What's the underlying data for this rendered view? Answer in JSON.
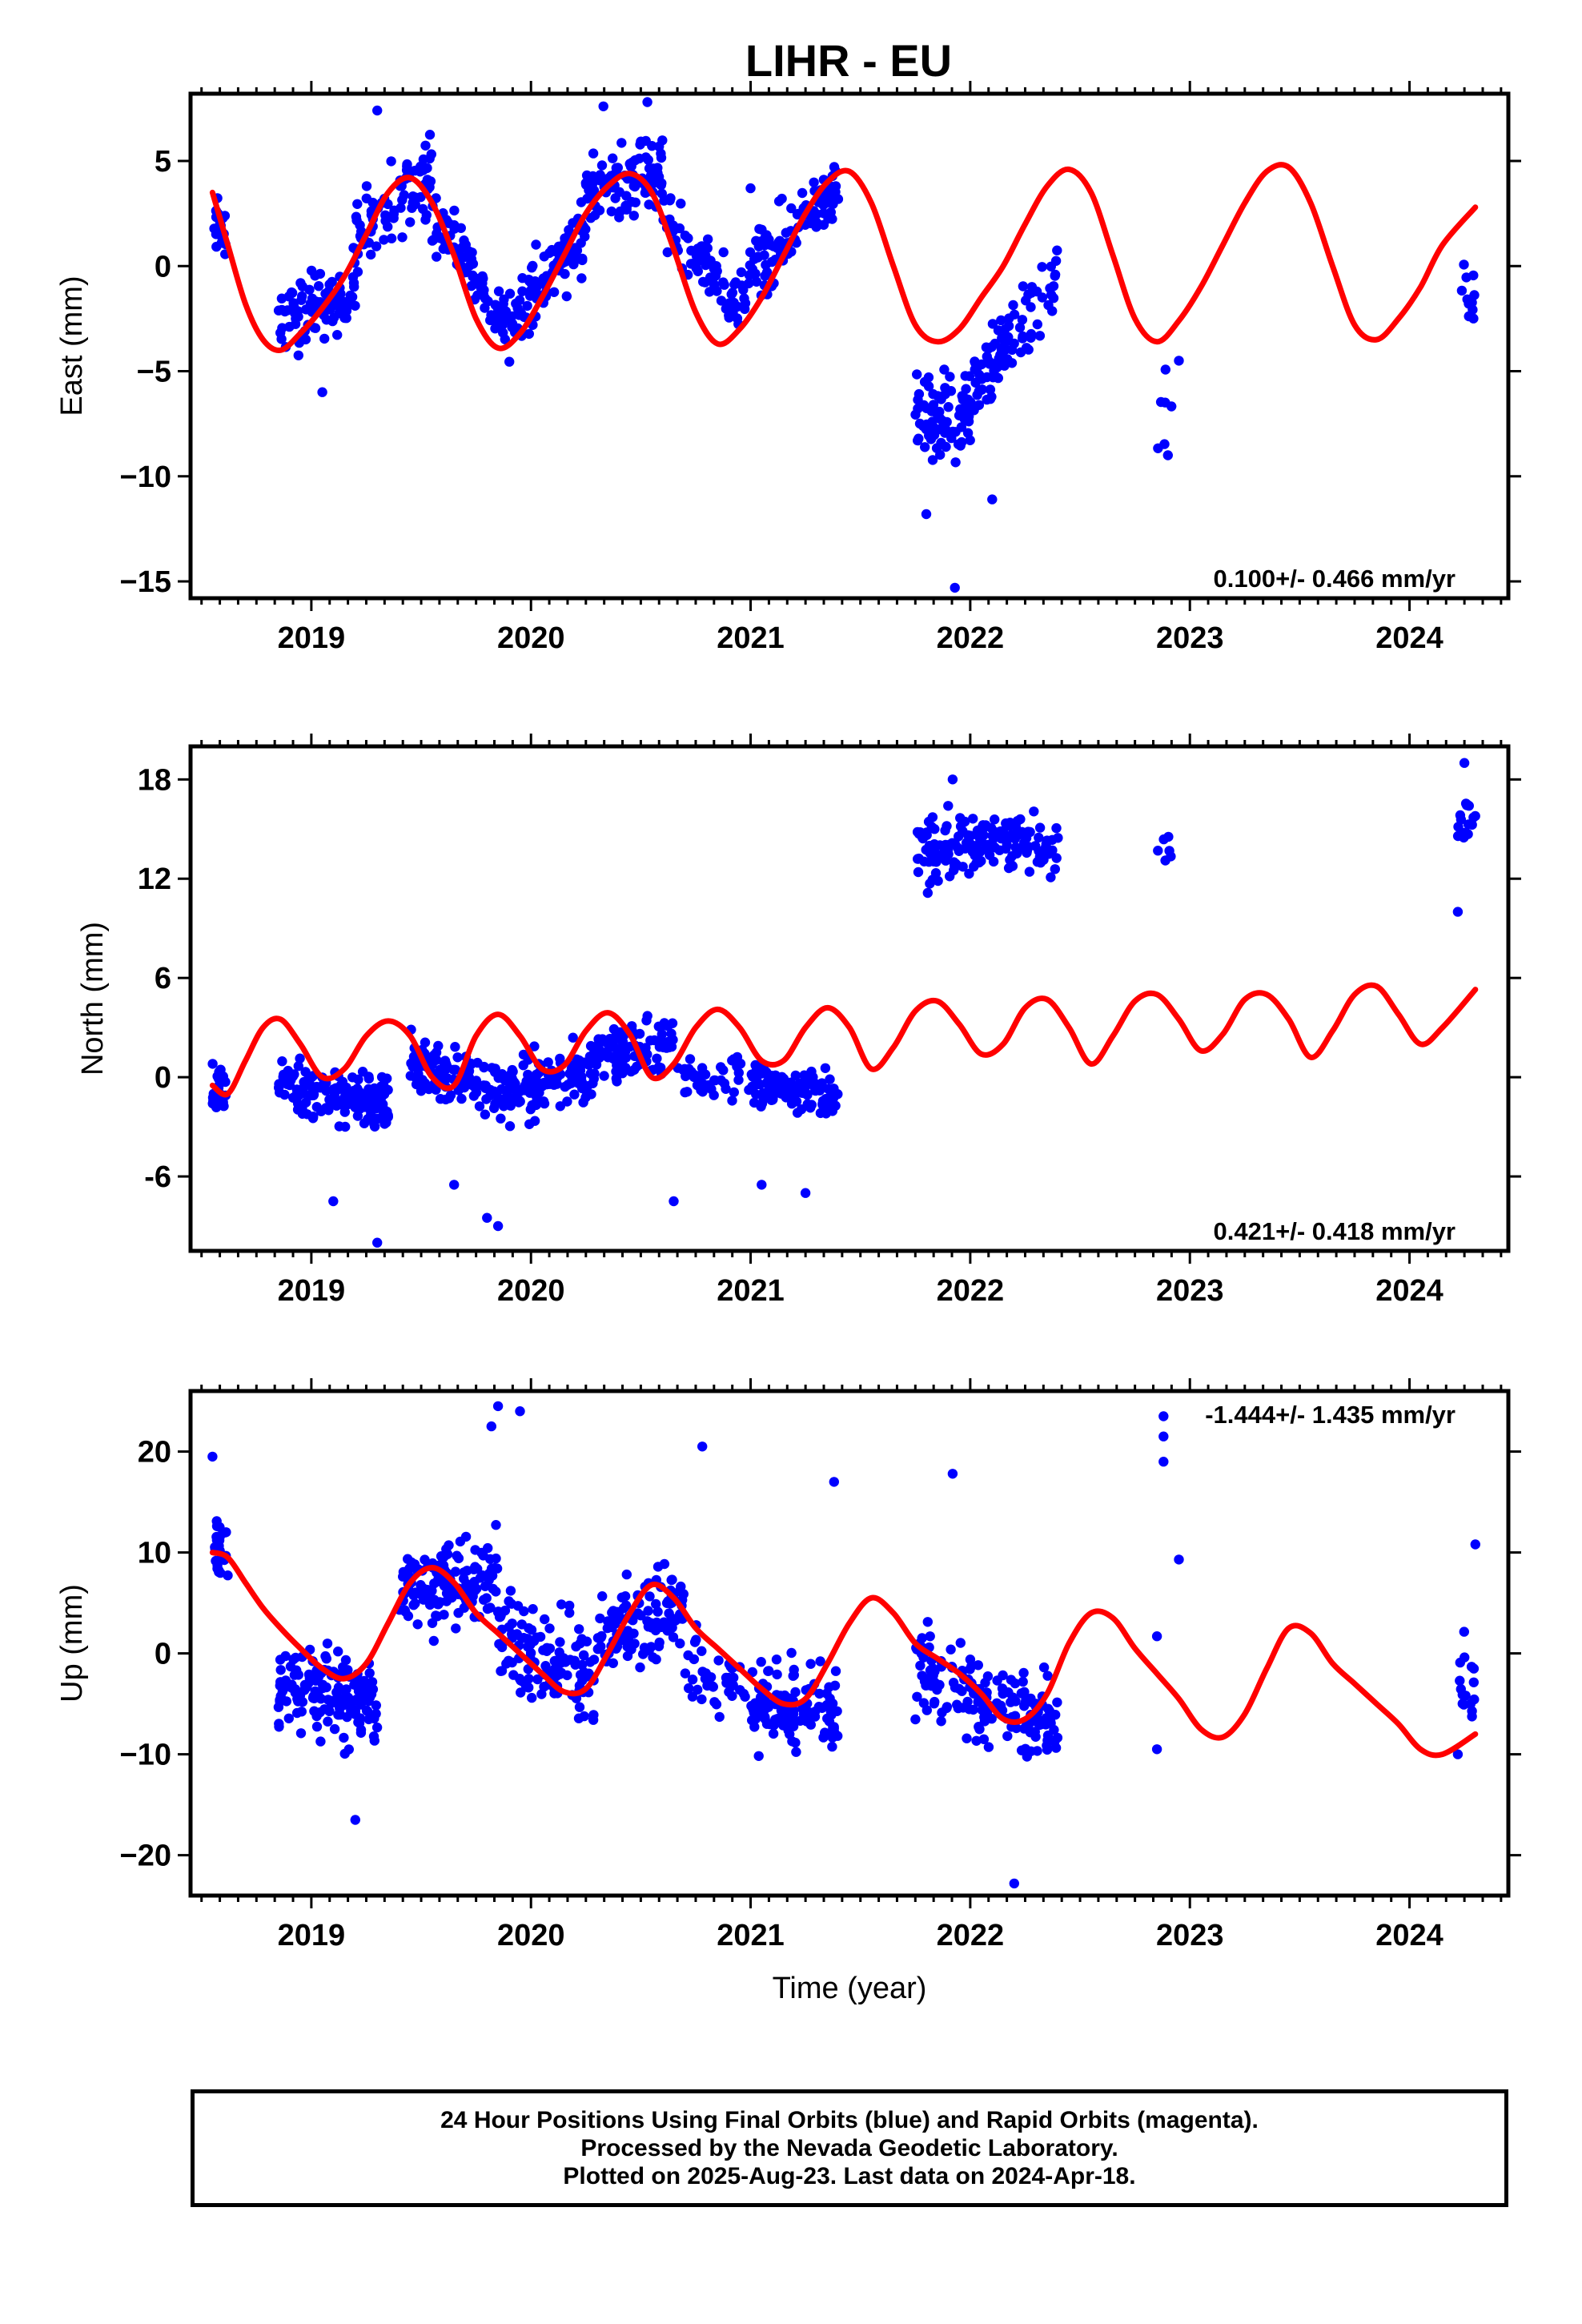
{
  "title": "LIHR - EU",
  "footer": {
    "line1": "24 Hour Positions Using Final Orbits (blue) and Rapid Orbits (magenta).",
    "line2": "Processed by the Nevada Geodetic Laboratory.",
    "line3": "Plotted on 2025-Aug-23. Last data on 2024-Apr-18."
  },
  "colors": {
    "points": "#0000ff",
    "model": "#ff0000",
    "axis": "#000000"
  },
  "chart_data": [
    {
      "type": "scatter",
      "title": "LIHR - EU",
      "ylabel": "East (mm)",
      "xlabel": "",
      "xlim": [
        2018.45,
        2024.45
      ],
      "ylim": [
        -15.8,
        8.2
      ],
      "yticks": [
        5,
        0,
        -5,
        -10,
        -15
      ],
      "ytick_labels": [
        "5",
        "0",
        "−5",
        "−10",
        "−15"
      ],
      "xticks": [
        2019,
        2020,
        2021,
        2022,
        2023,
        2024
      ],
      "rate_label": "0.100+/- 0.466 mm/yr",
      "rate_position": "bottom-right",
      "model": {
        "name": "fit",
        "x": [
          2018.55,
          2018.62,
          2018.7,
          2018.78,
          2018.86,
          2018.95,
          2019.05,
          2019.15,
          2019.25,
          2019.35,
          2019.45,
          2019.55,
          2019.65,
          2019.75,
          2019.85,
          2019.95,
          2020.05,
          2020.15,
          2020.25,
          2020.35,
          2020.45,
          2020.55,
          2020.65,
          2020.75,
          2020.85,
          2020.95,
          2021.05,
          2021.15,
          2021.25,
          2021.35,
          2021.45,
          2021.55,
          2021.65,
          2021.75,
          2021.85,
          2021.95,
          2022.05,
          2022.15,
          2022.25,
          2022.35,
          2022.45,
          2022.55,
          2022.65,
          2022.75,
          2022.85,
          2022.95,
          2023.05,
          2023.15,
          2023.25,
          2023.35,
          2023.45,
          2023.55,
          2023.65,
          2023.75,
          2023.85,
          2023.95,
          2024.05,
          2024.15,
          2024.3
        ],
        "y": [
          3.5,
          1.0,
          -1.8,
          -3.5,
          -4.0,
          -3.2,
          -2.0,
          -0.5,
          1.5,
          3.5,
          4.2,
          3.0,
          0.5,
          -2.5,
          -3.9,
          -3.2,
          -1.5,
          0.5,
          2.5,
          3.8,
          4.4,
          3.5,
          0.8,
          -2.2,
          -3.7,
          -3.0,
          -1.5,
          0.5,
          2.5,
          4.0,
          4.5,
          3.0,
          0.0,
          -2.8,
          -3.6,
          -3.0,
          -1.5,
          0.0,
          2.0,
          3.8,
          4.6,
          3.5,
          0.5,
          -2.5,
          -3.6,
          -2.6,
          -1.0,
          1.0,
          3.0,
          4.5,
          4.7,
          3.0,
          0.0,
          -2.8,
          -3.5,
          -2.5,
          -1.0,
          1.0,
          2.8
        ]
      },
      "points_segments": [
        {
          "x": [
            2018.55,
            2018.62
          ],
          "center": [
            2.0,
            1.5
          ],
          "spread": 2.2,
          "count": 26
        },
        {
          "x": [
            2018.85,
            2019.2
          ],
          "center": [
            -2.8,
            -1.0
          ],
          "spread": 3.0,
          "count": 90
        },
        {
          "x": [
            2019.2,
            2019.55
          ],
          "center": [
            1.5,
            4.5
          ],
          "spread": 3.2,
          "count": 80
        },
        {
          "x": [
            2019.55,
            2019.9
          ],
          "center": [
            2.5,
            -2.8
          ],
          "spread": 2.8,
          "count": 80
        },
        {
          "x": [
            2019.9,
            2020.25
          ],
          "center": [
            -2.8,
            1.8
          ],
          "spread": 3.0,
          "count": 90
        },
        {
          "x": [
            2020.25,
            2020.6
          ],
          "center": [
            3.5,
            4.6
          ],
          "spread": 3.0,
          "count": 100
        },
        {
          "x": [
            2020.6,
            2020.95
          ],
          "center": [
            2.0,
            -2.0
          ],
          "spread": 2.8,
          "count": 70
        },
        {
          "x": [
            2020.95,
            2021.4
          ],
          "center": [
            -1.0,
            4.0
          ],
          "spread": 3.0,
          "count": 110
        },
        {
          "x": [
            2021.75,
            2022.0
          ],
          "center": [
            -7.5,
            -7.0
          ],
          "spread": 3.4,
          "count": 85
        },
        {
          "x": [
            2022.0,
            2022.4
          ],
          "center": [
            -6.0,
            -0.5
          ],
          "spread": 3.0,
          "count": 90
        },
        {
          "x": [
            2022.85,
            2022.92
          ],
          "center": [
            -7.0,
            -6.0
          ],
          "spread": 3.0,
          "count": 6
        },
        {
          "x": [
            2024.22,
            2024.3
          ],
          "center": [
            -1.5,
            -1.5
          ],
          "spread": 2.5,
          "count": 14
        }
      ],
      "outliers": [
        [
          2021.93,
          -15.3
        ],
        [
          2021.8,
          -11.8
        ],
        [
          2022.1,
          -11.1
        ],
        [
          2019.05,
          -6.0
        ],
        [
          2019.3,
          7.4
        ],
        [
          2020.33,
          7.6
        ],
        [
          2020.53,
          7.8
        ],
        [
          2021.0,
          3.7
        ],
        [
          2022.95,
          -4.5
        ],
        [
          2022.9,
          -9.0
        ]
      ]
    },
    {
      "type": "scatter",
      "ylabel": "North (mm)",
      "xlabel": "",
      "xlim": [
        2018.45,
        2024.45
      ],
      "ylim": [
        -10.5,
        20
      ],
      "yticks": [
        18,
        12,
        6,
        0,
        -6
      ],
      "ytick_labels": [
        "18",
        "12",
        "6",
        "0",
        "-6"
      ],
      "xticks": [
        2019,
        2020,
        2021,
        2022,
        2023,
        2024
      ],
      "rate_label": "0.421+/- 0.418 mm/yr",
      "rate_position": "bottom-right",
      "model": {
        "name": "fit",
        "x": [
          2018.55,
          2018.62,
          2018.7,
          2018.78,
          2018.86,
          2018.95,
          2019.05,
          2019.15,
          2019.25,
          2019.35,
          2019.45,
          2019.55,
          2019.65,
          2019.75,
          2019.85,
          2019.95,
          2020.05,
          2020.15,
          2020.25,
          2020.35,
          2020.45,
          2020.55,
          2020.65,
          2020.75,
          2020.85,
          2020.95,
          2021.05,
          2021.15,
          2021.25,
          2021.35,
          2021.45,
          2021.55,
          2021.65,
          2021.75,
          2021.85,
          2021.95,
          2022.05,
          2022.15,
          2022.25,
          2022.35,
          2022.45,
          2022.55,
          2022.65,
          2022.75,
          2022.85,
          2022.95,
          2023.05,
          2023.15,
          2023.25,
          2023.35,
          2023.45,
          2023.55,
          2023.65,
          2023.75,
          2023.85,
          2023.95,
          2024.05,
          2024.15,
          2024.3
        ],
        "y": [
          -0.5,
          -1.0,
          1.0,
          3.0,
          3.5,
          2.0,
          0.0,
          0.5,
          2.5,
          3.4,
          2.5,
          0.0,
          -0.5,
          2.5,
          3.8,
          2.5,
          0.5,
          0.7,
          2.8,
          3.9,
          2.6,
          0.0,
          0.8,
          3.0,
          4.1,
          3.0,
          1.0,
          1.0,
          3.0,
          4.2,
          3.0,
          0.5,
          1.8,
          4.0,
          4.6,
          3.2,
          1.4,
          2.0,
          4.2,
          4.7,
          3.0,
          0.8,
          2.5,
          4.6,
          5.0,
          3.5,
          1.6,
          2.6,
          4.7,
          5.0,
          3.5,
          1.2,
          2.8,
          5.0,
          5.5,
          3.8,
          2.0,
          3.0,
          5.3
        ]
      },
      "points_segments": [
        {
          "x": [
            2018.55,
            2018.62
          ],
          "center": [
            -0.5,
            -0.8
          ],
          "spread": 2.6,
          "count": 26
        },
        {
          "x": [
            2018.85,
            2019.35
          ],
          "center": [
            -0.5,
            -1.5
          ],
          "spread": 3.4,
          "count": 150
        },
        {
          "x": [
            2019.45,
            2019.9
          ],
          "center": [
            1.0,
            -1.0
          ],
          "spread": 3.0,
          "count": 120
        },
        {
          "x": [
            2019.9,
            2020.3
          ],
          "center": [
            -1.0,
            0.5
          ],
          "spread": 3.0,
          "count": 120
        },
        {
          "x": [
            2020.3,
            2020.65
          ],
          "center": [
            1.5,
            2.0
          ],
          "spread": 2.8,
          "count": 100
        },
        {
          "x": [
            2020.65,
            2021.0
          ],
          "center": [
            0.0,
            0.2
          ],
          "spread": 2.4,
          "count": 40
        },
        {
          "x": [
            2021.0,
            2021.4
          ],
          "center": [
            -0.5,
            -1.2
          ],
          "spread": 2.4,
          "count": 120
        },
        {
          "x": [
            2021.75,
            2022.05
          ],
          "center": [
            13.5,
            14.0
          ],
          "spread": 3.4,
          "count": 90
        },
        {
          "x": [
            2022.05,
            2022.4
          ],
          "center": [
            14.5,
            13.8
          ],
          "spread": 2.6,
          "count": 90
        },
        {
          "x": [
            2022.85,
            2022.92
          ],
          "center": [
            14.5,
            14.0
          ],
          "spread": 2.0,
          "count": 6
        },
        {
          "x": [
            2024.22,
            2024.3
          ],
          "center": [
            15.5,
            15.5
          ],
          "spread": 2.2,
          "count": 16
        }
      ],
      "outliers": [
        [
          2024.25,
          19.0
        ],
        [
          2024.22,
          10.0
        ],
        [
          2021.92,
          18.0
        ],
        [
          2019.3,
          -10.0
        ],
        [
          2019.1,
          -7.5
        ],
        [
          2019.85,
          -9.0
        ],
        [
          2019.8,
          -8.5
        ],
        [
          2020.65,
          -7.5
        ],
        [
          2021.25,
          -7.0
        ],
        [
          2021.05,
          -6.5
        ],
        [
          2019.65,
          -6.5
        ]
      ]
    },
    {
      "type": "scatter",
      "ylabel": "Up (mm)",
      "xlabel": "Time (year)",
      "xlim": [
        2018.45,
        2024.45
      ],
      "ylim": [
        -24,
        26
      ],
      "yticks": [
        20,
        10,
        0,
        -10,
        -20
      ],
      "ytick_labels": [
        "20",
        "10",
        "0",
        "−10",
        "−20"
      ],
      "xticks": [
        2019,
        2020,
        2021,
        2022,
        2023,
        2024
      ],
      "rate_label": "-1.444+/- 1.435 mm/yr",
      "rate_position": "top-right",
      "model": {
        "name": "fit",
        "x": [
          2018.55,
          2018.62,
          2018.7,
          2018.78,
          2018.86,
          2018.95,
          2019.05,
          2019.15,
          2019.25,
          2019.35,
          2019.45,
          2019.55,
          2019.65,
          2019.75,
          2019.85,
          2019.95,
          2020.05,
          2020.15,
          2020.25,
          2020.35,
          2020.45,
          2020.55,
          2020.65,
          2020.75,
          2020.85,
          2020.95,
          2021.05,
          2021.15,
          2021.25,
          2021.35,
          2021.45,
          2021.55,
          2021.65,
          2021.75,
          2021.85,
          2021.95,
          2022.05,
          2022.15,
          2022.25,
          2022.35,
          2022.45,
          2022.55,
          2022.65,
          2022.75,
          2022.85,
          2022.95,
          2023.05,
          2023.15,
          2023.25,
          2023.35,
          2023.45,
          2023.55,
          2023.65,
          2023.75,
          2023.85,
          2023.95,
          2024.05,
          2024.15,
          2024.3
        ],
        "y": [
          10.0,
          9.5,
          7.0,
          4.5,
          2.5,
          0.5,
          -1.5,
          -2.5,
          -1.0,
          3.0,
          7.0,
          8.5,
          7.0,
          4.0,
          2.0,
          0.0,
          -2.0,
          -3.8,
          -3.5,
          0.0,
          4.0,
          6.8,
          5.5,
          2.5,
          0.5,
          -1.5,
          -3.5,
          -5.0,
          -4.5,
          -1.0,
          3.0,
          5.5,
          4.0,
          1.0,
          -0.5,
          -2.0,
          -4.0,
          -6.5,
          -6.5,
          -4.0,
          1.0,
          4.0,
          3.5,
          0.5,
          -2.0,
          -4.5,
          -7.5,
          -8.3,
          -6.0,
          -1.5,
          2.5,
          2.0,
          -1.0,
          -3.0,
          -5.0,
          -7.0,
          -9.5,
          -10.0,
          -8.0
        ]
      },
      "points_segments": [
        {
          "x": [
            2018.55,
            2018.62
          ],
          "center": [
            11.0,
            9.0
          ],
          "spread": 6.0,
          "count": 26
        },
        {
          "x": [
            2018.85,
            2019.3
          ],
          "center": [
            -3.0,
            -5.0
          ],
          "spread": 8.0,
          "count": 150
        },
        {
          "x": [
            2019.4,
            2019.85
          ],
          "center": [
            6.0,
            8.0
          ],
          "spread": 7.5,
          "count": 140
        },
        {
          "x": [
            2019.85,
            2020.3
          ],
          "center": [
            2.0,
            -3.0
          ],
          "spread": 8.0,
          "count": 130
        },
        {
          "x": [
            2020.3,
            2020.7
          ],
          "center": [
            2.0,
            5.0
          ],
          "spread": 8.0,
          "count": 110
        },
        {
          "x": [
            2020.7,
            2021.0
          ],
          "center": [
            -1.0,
            -4.0
          ],
          "spread": 7.0,
          "count": 40
        },
        {
          "x": [
            2021.0,
            2021.4
          ],
          "center": [
            -5.0,
            -6.0
          ],
          "spread": 8.0,
          "count": 130
        },
        {
          "x": [
            2021.75,
            2022.05
          ],
          "center": [
            -2.0,
            -4.0
          ],
          "spread": 8.0,
          "count": 80
        },
        {
          "x": [
            2022.05,
            2022.4
          ],
          "center": [
            -5.0,
            -7.0
          ],
          "spread": 7.0,
          "count": 90
        },
        {
          "x": [
            2024.22,
            2024.3
          ],
          "center": [
            -4.0,
            -3.0
          ],
          "spread": 7.0,
          "count": 16
        }
      ],
      "outliers": [
        [
          2019.85,
          24.5
        ],
        [
          2019.95,
          24.0
        ],
        [
          2019.82,
          22.5
        ],
        [
          2022.88,
          23.5
        ],
        [
          2022.88,
          21.5
        ],
        [
          2022.88,
          19.0
        ],
        [
          2022.95,
          9.3
        ],
        [
          2022.85,
          1.7
        ],
        [
          2022.85,
          -9.5
        ],
        [
          2021.92,
          17.8
        ],
        [
          2020.78,
          20.5
        ],
        [
          2022.2,
          -22.8
        ],
        [
          2018.55,
          19.5
        ],
        [
          2021.38,
          17.0
        ],
        [
          2019.2,
          -16.5
        ],
        [
          2024.3,
          10.8
        ],
        [
          2024.22,
          -10.0
        ]
      ]
    }
  ]
}
